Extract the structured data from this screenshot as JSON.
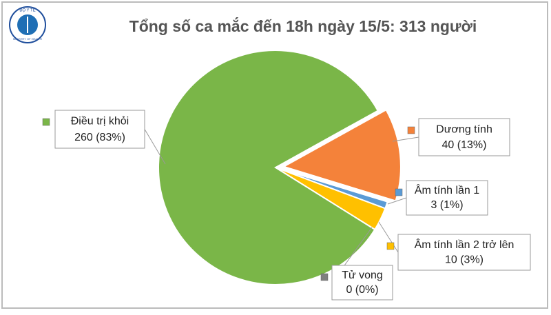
{
  "chart_data": {
    "type": "pie",
    "title": "Tổng số ca mắc đến 18h ngày 15/5: 313 người",
    "logo": {
      "top": "BỘ Y TẾ",
      "bottom": "MINISTRY OF HEALTH"
    },
    "categories": [
      "Dương tính",
      "Âm tính lần 1",
      "Âm tính lần 2 trở lên",
      "Tử vong",
      "Điều trị khỏi"
    ],
    "values": [
      40,
      3,
      10,
      0,
      260
    ],
    "value_labels": [
      "40 (13%)",
      "3 (1%)",
      "10 (3%)",
      "0 (0%)",
      "260 (83%)"
    ],
    "colors": [
      "#f4823a",
      "#5b9bd5",
      "#ffc000",
      "#7f7f7f",
      "#7ab648"
    ]
  }
}
